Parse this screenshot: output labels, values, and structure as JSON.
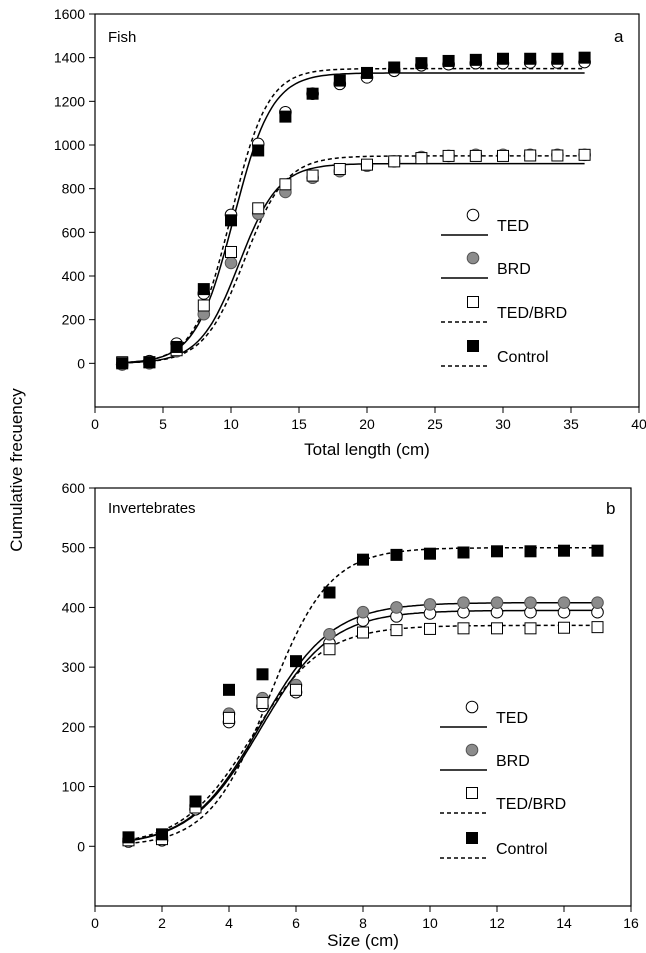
{
  "figure": {
    "shared_ylabel": "Cumulative frecuency"
  },
  "chart_data": [
    {
      "type": "scatter",
      "panel_letter": "a",
      "panel_title": "Fish",
      "xlabel": "Total length (cm)",
      "ylabel": "Cumulative frecuency",
      "xlim": [
        0,
        40
      ],
      "ylim": [
        -200,
        1600
      ],
      "xticks": [
        0,
        5,
        10,
        15,
        20,
        25,
        30,
        35,
        40
      ],
      "yticks": [
        0,
        200,
        400,
        600,
        800,
        1000,
        1200,
        1400,
        1600
      ],
      "legend_position": "right-center",
      "series": [
        {
          "name": "TED",
          "marker": "open-circle",
          "fill": "#ffffff",
          "line": "solid",
          "x": [
            2,
            4,
            6,
            8,
            10,
            12,
            14,
            16,
            18,
            20,
            22,
            24,
            26,
            28,
            30,
            32,
            34,
            36
          ],
          "y": [
            -5,
            10,
            90,
            320,
            680,
            1005,
            1150,
            1235,
            1280,
            1310,
            1340,
            1365,
            1370,
            1375,
            1375,
            1378,
            1378,
            1380
          ],
          "curve": {
            "max": 1330,
            "mid": 10.2,
            "slope": 1.4
          }
        },
        {
          "name": "BRD",
          "marker": "gray-circle",
          "fill": "#8c8c8c",
          "line": "solid",
          "x": [
            2,
            4,
            6,
            8,
            10,
            12,
            14,
            16,
            18,
            20,
            22,
            24,
            26,
            28,
            30,
            32,
            34,
            36
          ],
          "y": [
            -5,
            0,
            55,
            225,
            460,
            685,
            785,
            850,
            880,
            905,
            925,
            945,
            950,
            955,
            955,
            955,
            955,
            955
          ],
          "curve": {
            "max": 915,
            "mid": 10.6,
            "slope": 1.45
          }
        },
        {
          "name": "TED/BRD",
          "marker": "open-square",
          "fill": "#ffffff",
          "line": "dashed",
          "x": [
            2,
            4,
            6,
            8,
            10,
            12,
            14,
            16,
            18,
            20,
            22,
            24,
            26,
            28,
            30,
            32,
            34,
            36
          ],
          "y": [
            5,
            5,
            60,
            265,
            510,
            710,
            820,
            860,
            890,
            910,
            925,
            940,
            950,
            950,
            950,
            952,
            952,
            955
          ],
          "curve": {
            "max": 950,
            "mid": 11.0,
            "slope": 1.5
          }
        },
        {
          "name": "Control",
          "marker": "filled-square",
          "fill": "#000000",
          "line": "dashed",
          "x": [
            2,
            4,
            6,
            8,
            10,
            12,
            14,
            16,
            18,
            20,
            22,
            24,
            26,
            28,
            30,
            32,
            34,
            36
          ],
          "y": [
            0,
            5,
            75,
            340,
            655,
            975,
            1130,
            1235,
            1295,
            1330,
            1355,
            1375,
            1385,
            1390,
            1395,
            1395,
            1395,
            1400
          ],
          "curve": {
            "max": 1350,
            "mid": 10.0,
            "slope": 1.35
          }
        }
      ]
    },
    {
      "type": "scatter",
      "panel_letter": "b",
      "panel_title": "Invertebrates",
      "xlabel": "Size (cm)",
      "ylabel": "Cumulative frecuency",
      "xlim": [
        0,
        16
      ],
      "ylim": [
        -100,
        600
      ],
      "xticks": [
        0,
        2,
        4,
        6,
        8,
        10,
        12,
        14,
        16
      ],
      "yticks": [
        0,
        100,
        200,
        300,
        400,
        500,
        600
      ],
      "legend_position": "right-center",
      "series": [
        {
          "name": "TED",
          "marker": "open-circle",
          "fill": "#ffffff",
          "line": "solid",
          "x": [
            1,
            2,
            3,
            4,
            5,
            6,
            7,
            8,
            9,
            10,
            11,
            12,
            13,
            14,
            15
          ],
          "y": [
            8,
            10,
            62,
            208,
            235,
            258,
            340,
            378,
            385,
            390,
            392,
            392,
            392,
            392,
            392
          ],
          "curve": {
            "max": 395,
            "mid": 4.95,
            "slope": 1.05
          }
        },
        {
          "name": "BRD",
          "marker": "gray-circle",
          "fill": "#8c8c8c",
          "line": "solid",
          "x": [
            1,
            2,
            3,
            4,
            5,
            6,
            7,
            8,
            9,
            10,
            11,
            12,
            13,
            14,
            15
          ],
          "y": [
            12,
            15,
            68,
            222,
            248,
            270,
            355,
            392,
            400,
            405,
            408,
            408,
            408,
            408,
            408
          ],
          "curve": {
            "max": 408,
            "mid": 4.95,
            "slope": 1.05
          }
        },
        {
          "name": "TED/BRD",
          "marker": "open-square",
          "fill": "#ffffff",
          "line": "dashed",
          "x": [
            1,
            2,
            3,
            4,
            5,
            6,
            7,
            8,
            9,
            10,
            11,
            12,
            13,
            14,
            15
          ],
          "y": [
            10,
            12,
            65,
            215,
            240,
            262,
            330,
            358,
            362,
            364,
            365,
            365,
            365,
            366,
            367
          ],
          "curve": {
            "max": 370,
            "mid": 4.7,
            "slope": 1.05
          }
        },
        {
          "name": "Control",
          "marker": "filled-square",
          "fill": "#000000",
          "line": "dashed",
          "x": [
            1,
            2,
            3,
            4,
            5,
            6,
            7,
            8,
            9,
            10,
            11,
            12,
            13,
            14,
            15
          ],
          "y": [
            15,
            20,
            75,
            262,
            288,
            310,
            425,
            480,
            488,
            490,
            492,
            494,
            494,
            495,
            495
          ],
          "curve": {
            "max": 500,
            "mid": 5.2,
            "slope": 0.9
          }
        }
      ]
    }
  ]
}
